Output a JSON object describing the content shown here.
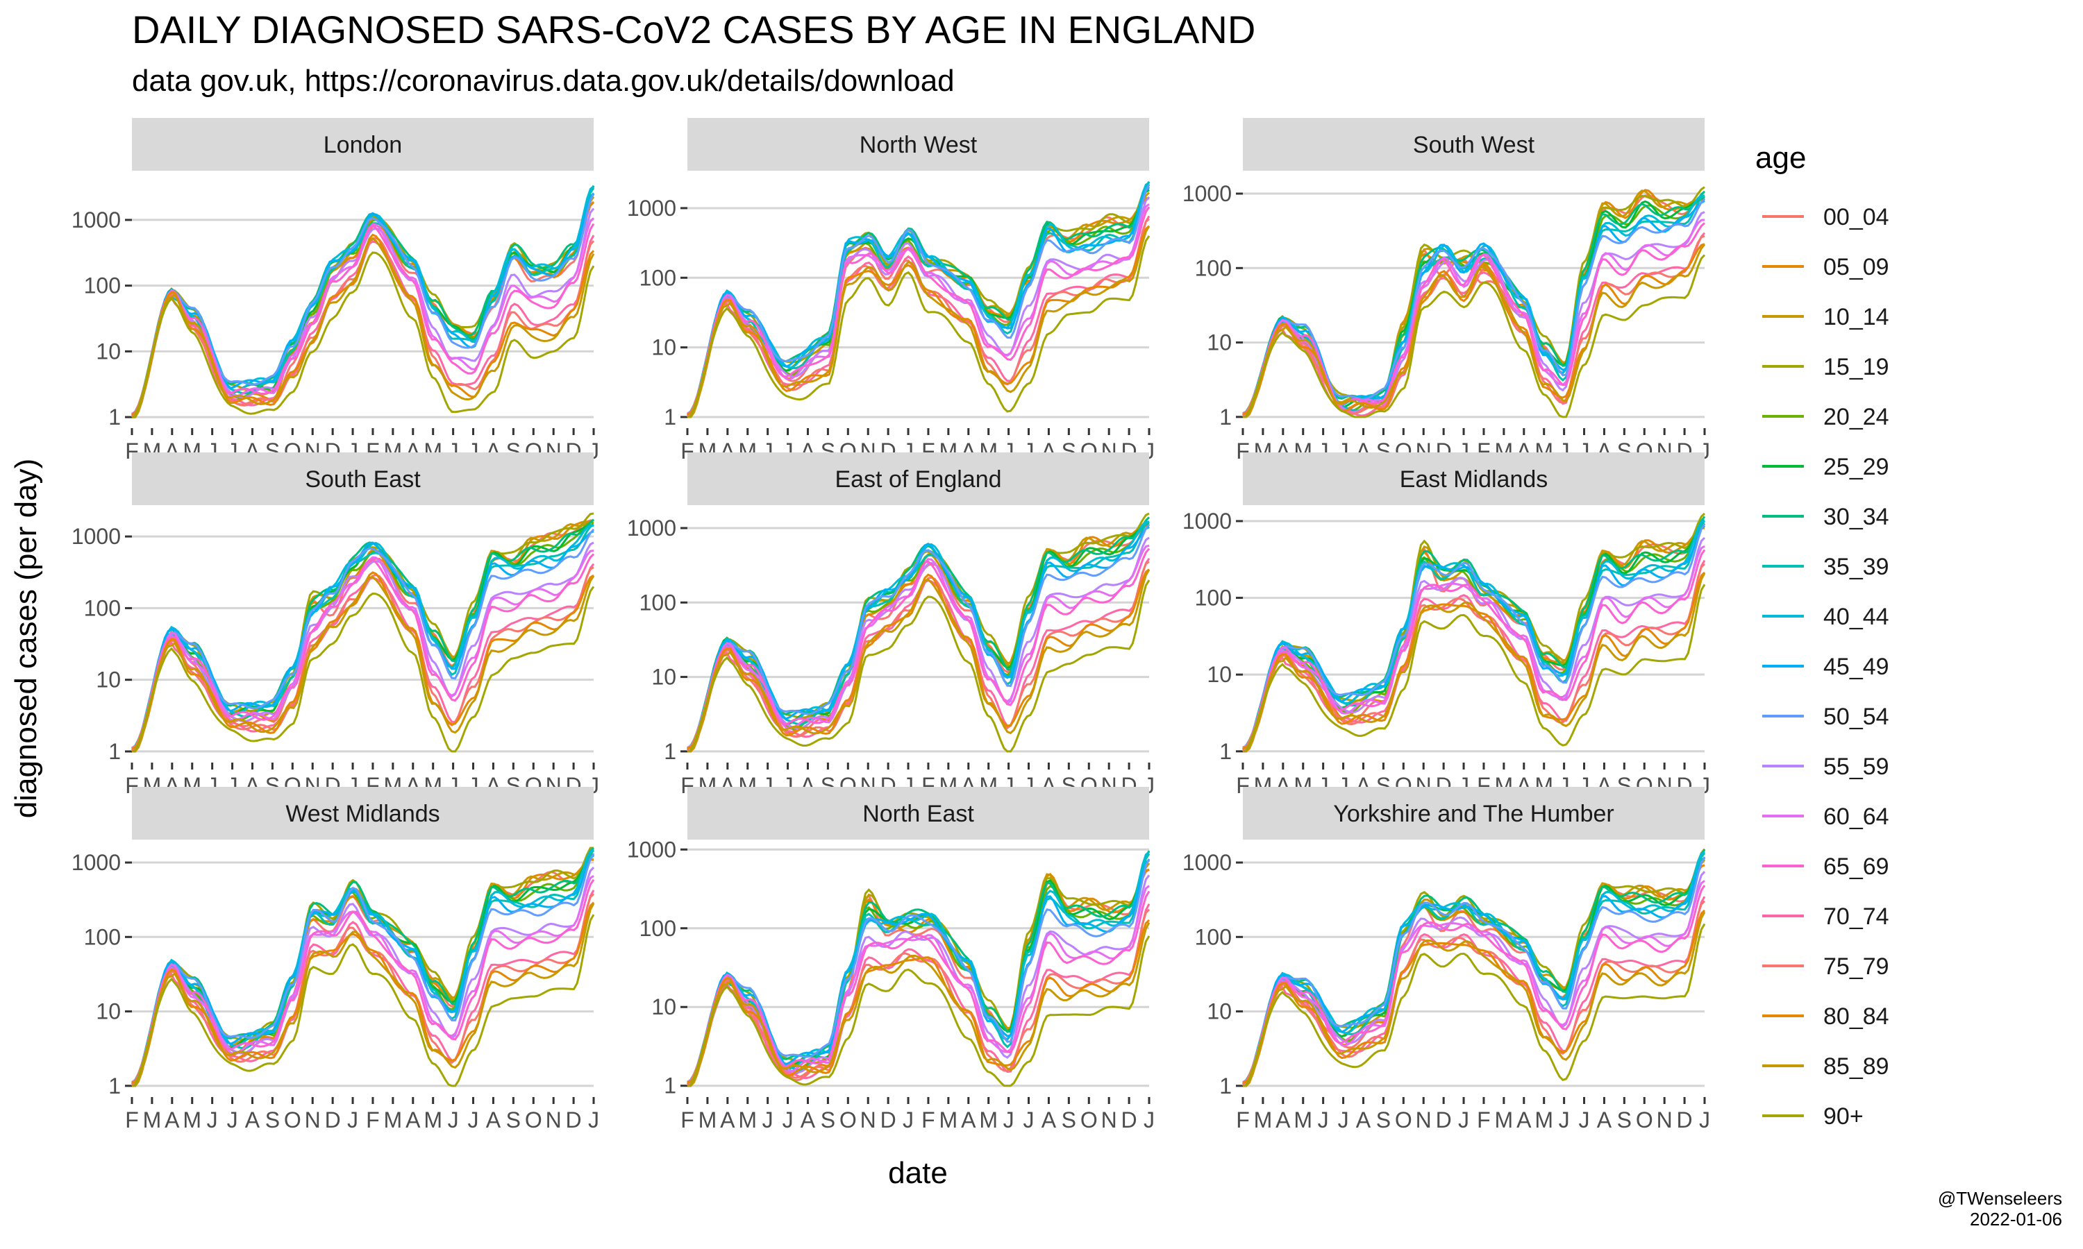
{
  "header": {
    "title": "DAILY DIAGNOSED SARS-CoV2 CASES BY AGE IN ENGLAND",
    "subtitle": "data gov.uk, https://coronavirus.data.gov.uk/details/download"
  },
  "credit": {
    "author": "@TWenseleers",
    "date": "2022-01-06"
  },
  "chart_data": {
    "type": "line",
    "xlabel": "date",
    "ylabel": "diagnosed cases (per day)",
    "y_scale": "log10",
    "y_ticks": [
      1,
      10,
      100,
      1000
    ],
    "y_tick_labels": [
      "1",
      "10",
      "100",
      "1000"
    ],
    "x_tick_labels": [
      "F",
      "M",
      "A",
      "M",
      "J",
      "J",
      "A",
      "S",
      "O",
      "N",
      "D",
      "J",
      "F",
      "M",
      "A",
      "M",
      "J",
      "J",
      "A",
      "S",
      "O",
      "N",
      "D",
      "J"
    ],
    "x_range": [
      "2020-02",
      "2022-01"
    ],
    "grid": true,
    "legend": {
      "title": "age",
      "placement": "right",
      "entries": [
        "00_04",
        "05_09",
        "10_14",
        "15_19",
        "20_24",
        "25_29",
        "30_34",
        "35_39",
        "40_44",
        "45_49",
        "50_54",
        "55_59",
        "60_64",
        "65_69",
        "70_74",
        "75_79",
        "80_84",
        "85_89",
        "90+"
      ]
    },
    "series_colors": [
      "#F8766D",
      "#E58700",
      "#C99800",
      "#A3A500",
      "#6BB100",
      "#00BA38",
      "#00BF7D",
      "#00C0AF",
      "#00BCD8",
      "#00B0F6",
      "#619CFF",
      "#B983FF",
      "#E76BF3",
      "#FD61D1",
      "#FF67A4",
      "#F8766D",
      "#E58700",
      "#C99800",
      "#A3A500"
    ],
    "anchor_months": [
      "2020-02",
      "2020-04",
      "2020-05",
      "2020-07",
      "2020-09",
      "2020-10",
      "2020-11",
      "2020-12",
      "2021-01",
      "2021-02",
      "2021-04",
      "2021-05",
      "2021-06",
      "2021-07",
      "2021-08",
      "2021-09",
      "2021-10",
      "2021-11",
      "2021-12",
      "2022-01"
    ],
    "panels": [
      {
        "name": "London",
        "ylim": [
          1,
          4000
        ],
        "series_young": [
          1,
          80,
          30,
          2,
          2,
          8,
          30,
          150,
          300,
          1000,
          200,
          60,
          25,
          20,
          60,
          300,
          150,
          150,
          300,
          2000
        ],
        "series_mid": [
          1,
          80,
          40,
          3,
          4,
          15,
          60,
          250,
          400,
          1200,
          250,
          50,
          20,
          15,
          80,
          400,
          200,
          200,
          400,
          3500
        ],
        "series_old": [
          1,
          70,
          20,
          1.5,
          1.3,
          3,
          10,
          40,
          80,
          400,
          40,
          4,
          1.5,
          1.3,
          3,
          15,
          10,
          10,
          20,
          200
        ]
      },
      {
        "name": "North West",
        "ylim": [
          1,
          2500
        ],
        "series_young": [
          1,
          50,
          20,
          4,
          10,
          200,
          300,
          120,
          300,
          150,
          100,
          40,
          30,
          100,
          500,
          400,
          600,
          800,
          700,
          1500
        ],
        "series_mid": [
          1,
          60,
          30,
          6,
          15,
          350,
          400,
          200,
          500,
          200,
          90,
          30,
          20,
          120,
          600,
          300,
          300,
          400,
          400,
          2500
        ],
        "series_old": [
          1,
          40,
          15,
          2,
          3,
          60,
          100,
          50,
          120,
          40,
          15,
          3,
          1.5,
          3,
          20,
          30,
          40,
          50,
          60,
          400
        ]
      },
      {
        "name": "South West",
        "ylim": [
          1,
          1500
        ],
        "series_young": [
          1,
          20,
          10,
          1.5,
          1.5,
          20,
          200,
          100,
          150,
          80,
          30,
          10,
          5,
          100,
          800,
          600,
          1200,
          800,
          700,
          900
        ],
        "series_mid": [
          1,
          20,
          15,
          1.5,
          2,
          10,
          100,
          200,
          100,
          200,
          40,
          8,
          4,
          80,
          400,
          300,
          500,
          400,
          500,
          1000
        ],
        "series_old": [
          1,
          15,
          8,
          1.2,
          1.2,
          3,
          30,
          60,
          30,
          80,
          10,
          2,
          1.2,
          5,
          30,
          20,
          40,
          40,
          50,
          150
        ]
      },
      {
        "name": "South East",
        "ylim": [
          1,
          2000
        ],
        "series_young": [
          1,
          40,
          20,
          3,
          3,
          10,
          150,
          100,
          300,
          600,
          150,
          50,
          20,
          100,
          600,
          500,
          1000,
          1200,
          1500,
          1800
        ],
        "series_mid": [
          1,
          50,
          30,
          4,
          5,
          15,
          100,
          200,
          500,
          800,
          200,
          40,
          15,
          80,
          500,
          400,
          500,
          500,
          800,
          1500
        ],
        "series_old": [
          1,
          30,
          10,
          2,
          1.5,
          3,
          20,
          40,
          80,
          200,
          30,
          3,
          1.2,
          3,
          15,
          20,
          30,
          30,
          40,
          200
        ]
      },
      {
        "name": "East of England",
        "ylim": [
          1,
          1500
        ],
        "series_young": [
          1,
          30,
          15,
          2,
          3,
          10,
          80,
          80,
          200,
          400,
          100,
          30,
          15,
          100,
          500,
          400,
          800,
          700,
          800,
          1200
        ],
        "series_mid": [
          1,
          30,
          20,
          3,
          4,
          15,
          100,
          150,
          250,
          600,
          120,
          25,
          10,
          80,
          400,
          300,
          350,
          400,
          600,
          1300
        ],
        "series_old": [
          1,
          20,
          8,
          1.5,
          1.5,
          3,
          20,
          30,
          50,
          150,
          20,
          3,
          1.2,
          3,
          15,
          15,
          25,
          25,
          30,
          200
        ]
      },
      {
        "name": "East Midlands",
        "ylim": [
          1,
          1200
        ],
        "series_young": [
          1,
          20,
          15,
          3,
          5,
          30,
          500,
          150,
          200,
          100,
          60,
          20,
          15,
          80,
          400,
          300,
          600,
          500,
          500,
          900
        ],
        "series_mid": [
          1,
          25,
          20,
          5,
          8,
          40,
          300,
          250,
          300,
          150,
          60,
          15,
          10,
          60,
          300,
          200,
          250,
          250,
          300,
          1100
        ],
        "series_old": [
          1,
          15,
          8,
          2,
          2,
          8,
          50,
          50,
          60,
          40,
          10,
          2,
          1.5,
          3,
          15,
          10,
          20,
          15,
          20,
          150
        ]
      },
      {
        "name": "West Midlands",
        "ylim": [
          1,
          1500
        ],
        "series_young": [
          1,
          40,
          20,
          3,
          5,
          20,
          200,
          150,
          400,
          200,
          80,
          30,
          15,
          80,
          500,
          400,
          700,
          800,
          700,
          1200
        ],
        "series_mid": [
          1,
          45,
          25,
          4,
          6,
          30,
          250,
          200,
          500,
          200,
          70,
          20,
          10,
          70,
          400,
          300,
          300,
          350,
          400,
          1600
        ],
        "series_old": [
          1,
          30,
          10,
          2,
          2,
          5,
          40,
          40,
          80,
          40,
          10,
          2,
          1.2,
          3,
          15,
          15,
          20,
          20,
          25,
          200
        ]
      },
      {
        "name": "North East",
        "ylim": [
          1,
          1000
        ],
        "series_young": [
          1,
          20,
          10,
          1.5,
          2,
          20,
          300,
          100,
          100,
          120,
          30,
          10,
          5,
          80,
          500,
          200,
          250,
          200,
          200,
          600
        ],
        "series_mid": [
          1,
          25,
          15,
          2,
          3,
          30,
          150,
          120,
          150,
          150,
          40,
          8,
          4,
          50,
          300,
          150,
          120,
          120,
          150,
          1000
        ],
        "series_old": [
          1,
          20,
          8,
          1.3,
          1.3,
          5,
          20,
          20,
          30,
          25,
          5,
          1.5,
          1.2,
          2,
          10,
          8,
          10,
          10,
          12,
          80
        ]
      },
      {
        "name": "Yorkshire and The Humber",
        "ylim": [
          1,
          1500
        ],
        "series_young": [
          1,
          25,
          15,
          4,
          8,
          100,
          300,
          150,
          250,
          150,
          80,
          30,
          20,
          120,
          500,
          400,
          500,
          400,
          400,
          1000
        ],
        "series_mid": [
          1,
          30,
          25,
          6,
          12,
          150,
          300,
          250,
          300,
          200,
          90,
          30,
          15,
          100,
          400,
          300,
          250,
          250,
          300,
          1500
        ],
        "series_old": [
          1,
          20,
          10,
          2,
          3,
          20,
          60,
          50,
          60,
          40,
          15,
          3,
          1.5,
          4,
          20,
          15,
          20,
          15,
          20,
          150
        ]
      }
    ]
  }
}
